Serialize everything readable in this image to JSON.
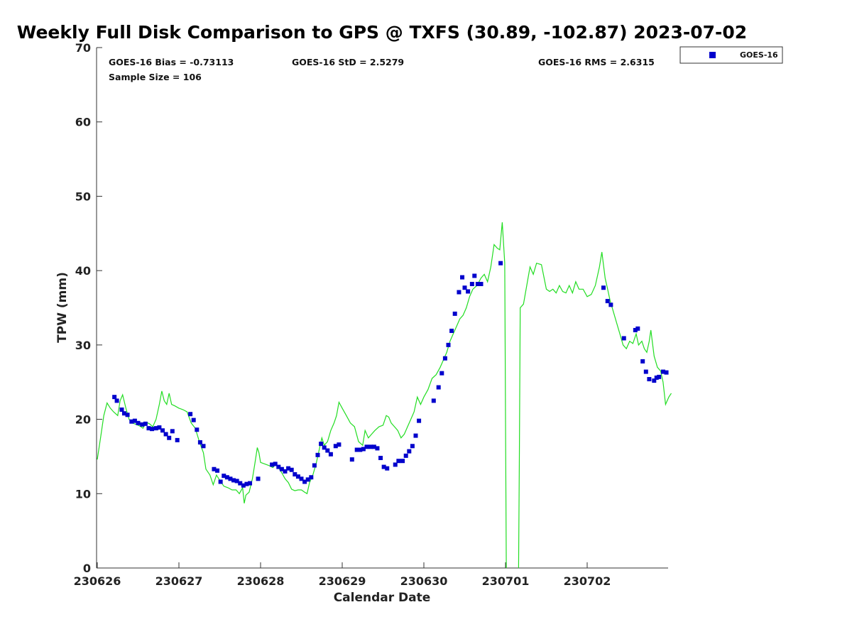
{
  "chart_data": {
    "type": "scatter",
    "title": "Weekly Full Disk Comparison to GPS @ TXFS (30.89, -102.87) 2023-07-02",
    "xlabel": "Calendar Date",
    "ylabel": "TPW (mm)",
    "xlim": [
      0,
      7
    ],
    "ylim": [
      0,
      70
    ],
    "x_ticks": [
      {
        "value": 0,
        "label": "230626"
      },
      {
        "value": 1,
        "label": "230627"
      },
      {
        "value": 2,
        "label": "230628"
      },
      {
        "value": 3,
        "label": "230629"
      },
      {
        "value": 4,
        "label": "230630"
      },
      {
        "value": 5,
        "label": "230701"
      },
      {
        "value": 6,
        "label": "230702"
      }
    ],
    "y_ticks": [
      {
        "value": 0,
        "label": "0"
      },
      {
        "value": 10,
        "label": "10"
      },
      {
        "value": 20,
        "label": "20"
      },
      {
        "value": 30,
        "label": "30"
      },
      {
        "value": 40,
        "label": "40"
      },
      {
        "value": 50,
        "label": "50"
      },
      {
        "value": 60,
        "label": "60"
      },
      {
        "value": 70,
        "label": "70"
      }
    ],
    "stats": {
      "bias": "GOES-16 Bias = -0.73113",
      "std": "GOES-16 StD = 2.5279",
      "rms": "GOES-16 RMS = 2.6315",
      "sample": "Sample Size = 106"
    },
    "legend": {
      "placement": "top-right-outside",
      "label": "GOES-16"
    },
    "colors": {
      "goes": "#0000cc",
      "gps": "#22dd22"
    },
    "gps_line": {
      "segments": [
        [
          [
            0.0,
            14.6
          ],
          [
            0.04,
            17.5
          ],
          [
            0.08,
            20.5
          ],
          [
            0.12,
            22.2
          ],
          [
            0.16,
            21.5
          ],
          [
            0.2,
            21.0
          ],
          [
            0.25,
            20.5
          ],
          [
            0.28,
            22.5
          ],
          [
            0.31,
            23.3
          ],
          [
            0.35,
            21.5
          ],
          [
            0.39,
            20.0
          ],
          [
            0.43,
            19.5
          ],
          [
            0.48,
            19.3
          ],
          [
            0.52,
            19.1
          ],
          [
            0.56,
            18.8
          ],
          [
            0.6,
            19.6
          ],
          [
            0.64,
            19.4
          ],
          [
            0.68,
            19.0
          ],
          [
            0.72,
            20.0
          ],
          [
            0.76,
            22.0
          ],
          [
            0.79,
            23.8
          ],
          [
            0.82,
            22.5
          ],
          [
            0.85,
            22.0
          ],
          [
            0.88,
            23.5
          ],
          [
            0.91,
            22.0
          ],
          [
            0.95,
            21.8
          ],
          [
            1.0,
            21.5
          ],
          [
            1.05,
            21.3
          ],
          [
            1.1,
            21.0
          ],
          [
            1.15,
            19.5
          ],
          [
            1.2,
            18.8
          ],
          [
            1.25,
            17.0
          ],
          [
            1.3,
            15.5
          ],
          [
            1.33,
            13.3
          ],
          [
            1.38,
            12.5
          ],
          [
            1.42,
            11.2
          ],
          [
            1.46,
            12.5
          ],
          [
            1.5,
            11.8
          ],
          [
            1.55,
            11.0
          ],
          [
            1.6,
            10.8
          ],
          [
            1.65,
            10.5
          ],
          [
            1.7,
            10.5
          ],
          [
            1.74,
            10.0
          ],
          [
            1.78,
            10.8
          ],
          [
            1.8,
            8.7
          ],
          [
            1.82,
            9.8
          ],
          [
            1.86,
            10.2
          ],
          [
            1.9,
            12.0
          ],
          [
            1.93,
            14.0
          ],
          [
            1.96,
            16.2
          ],
          [
            1.98,
            15.5
          ],
          [
            2.0,
            14.2
          ],
          [
            2.05,
            14.0
          ],
          [
            2.1,
            13.8
          ],
          [
            2.15,
            13.5
          ],
          [
            2.18,
            13.9
          ],
          [
            2.22,
            13.5
          ],
          [
            2.26,
            12.8
          ],
          [
            2.3,
            12.0
          ],
          [
            2.34,
            11.5
          ],
          [
            2.38,
            10.6
          ],
          [
            2.42,
            10.4
          ],
          [
            2.46,
            10.5
          ],
          [
            2.5,
            10.5
          ],
          [
            2.54,
            10.2
          ],
          [
            2.57,
            10.0
          ],
          [
            2.6,
            11.5
          ],
          [
            2.64,
            12.5
          ],
          [
            2.68,
            14.0
          ],
          [
            2.72,
            16.0
          ],
          [
            2.75,
            17.5
          ],
          [
            2.78,
            16.5
          ],
          [
            2.82,
            17.0
          ],
          [
            2.86,
            18.5
          ],
          [
            2.9,
            19.5
          ],
          [
            2.93,
            20.5
          ],
          [
            2.96,
            22.3
          ],
          [
            3.0,
            21.5
          ],
          [
            3.05,
            20.5
          ],
          [
            3.1,
            19.5
          ],
          [
            3.15,
            19.0
          ],
          [
            3.2,
            17.0
          ],
          [
            3.25,
            16.5
          ],
          [
            3.28,
            18.5
          ],
          [
            3.32,
            17.5
          ],
          [
            3.36,
            18.0
          ],
          [
            3.4,
            18.5
          ],
          [
            3.45,
            19.0
          ],
          [
            3.5,
            19.2
          ],
          [
            3.54,
            20.5
          ],
          [
            3.57,
            20.3
          ],
          [
            3.6,
            19.5
          ],
          [
            3.64,
            19.0
          ],
          [
            3.68,
            18.5
          ],
          [
            3.72,
            17.5
          ],
          [
            3.76,
            18.0
          ],
          [
            3.8,
            19.0
          ],
          [
            3.84,
            20.0
          ],
          [
            3.88,
            21.0
          ],
          [
            3.92,
            23.0
          ],
          [
            3.96,
            22.0
          ],
          [
            4.0,
            23.0
          ],
          [
            4.05,
            24.0
          ],
          [
            4.1,
            25.5
          ],
          [
            4.15,
            26.0
          ],
          [
            4.2,
            27.0
          ],
          [
            4.24,
            28.0
          ],
          [
            4.28,
            29.0
          ],
          [
            4.32,
            30.5
          ],
          [
            4.36,
            31.5
          ],
          [
            4.4,
            32.5
          ],
          [
            4.44,
            33.5
          ],
          [
            4.48,
            34.0
          ],
          [
            4.52,
            35.0
          ],
          [
            4.56,
            36.5
          ],
          [
            4.6,
            37.5
          ],
          [
            4.65,
            38.0
          ],
          [
            4.7,
            39.0
          ],
          [
            4.74,
            39.5
          ],
          [
            4.78,
            38.5
          ],
          [
            4.82,
            40.5
          ],
          [
            4.86,
            43.5
          ],
          [
            4.9,
            43.0
          ],
          [
            4.93,
            42.8
          ],
          [
            4.96,
            46.5
          ],
          [
            4.99,
            41.0
          ],
          [
            5.0,
            20.0
          ],
          [
            5.01,
            0.0
          ]
        ],
        [
          [
            5.16,
            0.0
          ],
          [
            5.17,
            15.0
          ],
          [
            5.18,
            35.0
          ],
          [
            5.22,
            35.5
          ],
          [
            5.26,
            38.0
          ],
          [
            5.3,
            40.5
          ],
          [
            5.34,
            39.5
          ],
          [
            5.38,
            41.0
          ],
          [
            5.44,
            40.8
          ],
          [
            5.5,
            37.5
          ],
          [
            5.54,
            37.2
          ],
          [
            5.58,
            37.5
          ],
          [
            5.62,
            37.0
          ],
          [
            5.66,
            38.0
          ],
          [
            5.7,
            37.2
          ],
          [
            5.74,
            37.0
          ],
          [
            5.78,
            38.0
          ],
          [
            5.82,
            37.0
          ],
          [
            5.86,
            38.5
          ],
          [
            5.9,
            37.5
          ],
          [
            5.95,
            37.5
          ],
          [
            6.0,
            36.5
          ],
          [
            6.05,
            36.8
          ],
          [
            6.1,
            38.0
          ],
          [
            6.15,
            40.5
          ],
          [
            6.18,
            42.5
          ],
          [
            6.22,
            39.0
          ],
          [
            6.25,
            37.5
          ],
          [
            6.28,
            36.0
          ],
          [
            6.32,
            34.5
          ],
          [
            6.36,
            33.0
          ],
          [
            6.4,
            31.5
          ],
          [
            6.44,
            30.0
          ],
          [
            6.48,
            29.5
          ],
          [
            6.52,
            30.5
          ],
          [
            6.56,
            30.2
          ],
          [
            6.6,
            31.5
          ],
          [
            6.63,
            30.0
          ],
          [
            6.67,
            30.5
          ],
          [
            6.7,
            29.5
          ],
          [
            6.73,
            29.0
          ],
          [
            6.76,
            30.5
          ],
          [
            6.78,
            32.0
          ],
          [
            6.82,
            28.5
          ],
          [
            6.86,
            27.0
          ],
          [
            6.9,
            26.5
          ],
          [
            6.93,
            25.0
          ],
          [
            6.96,
            22.0
          ],
          [
            7.0,
            23.0
          ],
          [
            7.03,
            23.5
          ]
        ]
      ]
    },
    "series": [
      {
        "name": "GOES-16",
        "points": [
          [
            0.21,
            23.0
          ],
          [
            0.24,
            22.5
          ],
          [
            0.3,
            21.3
          ],
          [
            0.33,
            20.8
          ],
          [
            0.37,
            20.6
          ],
          [
            0.42,
            19.7
          ],
          [
            0.46,
            19.8
          ],
          [
            0.5,
            19.5
          ],
          [
            0.55,
            19.3
          ],
          [
            0.59,
            19.4
          ],
          [
            0.63,
            18.8
          ],
          [
            0.67,
            18.7
          ],
          [
            0.72,
            18.8
          ],
          [
            0.76,
            18.9
          ],
          [
            0.8,
            18.5
          ],
          [
            0.84,
            18.0
          ],
          [
            0.88,
            17.5
          ],
          [
            0.92,
            18.4
          ],
          [
            0.98,
            17.2
          ],
          [
            1.14,
            20.7
          ],
          [
            1.18,
            19.9
          ],
          [
            1.22,
            18.6
          ],
          [
            1.26,
            16.9
          ],
          [
            1.3,
            16.4
          ],
          [
            1.43,
            13.3
          ],
          [
            1.47,
            13.1
          ],
          [
            1.51,
            11.6
          ],
          [
            1.55,
            12.4
          ],
          [
            1.59,
            12.2
          ],
          [
            1.63,
            12.0
          ],
          [
            1.67,
            11.8
          ],
          [
            1.71,
            11.7
          ],
          [
            1.75,
            11.4
          ],
          [
            1.79,
            11.1
          ],
          [
            1.83,
            11.3
          ],
          [
            1.87,
            11.4
          ],
          [
            1.97,
            12.0
          ],
          [
            2.14,
            13.9
          ],
          [
            2.18,
            14.0
          ],
          [
            2.22,
            13.6
          ],
          [
            2.26,
            13.3
          ],
          [
            2.3,
            13.0
          ],
          [
            2.34,
            13.4
          ],
          [
            2.38,
            13.2
          ],
          [
            2.42,
            12.6
          ],
          [
            2.46,
            12.3
          ],
          [
            2.5,
            12.0
          ],
          [
            2.54,
            11.6
          ],
          [
            2.58,
            11.9
          ],
          [
            2.62,
            12.2
          ],
          [
            2.66,
            13.8
          ],
          [
            2.7,
            15.2
          ],
          [
            2.74,
            16.7
          ],
          [
            2.78,
            16.2
          ],
          [
            2.82,
            15.8
          ],
          [
            2.86,
            15.3
          ],
          [
            2.92,
            16.4
          ],
          [
            2.96,
            16.6
          ],
          [
            3.12,
            14.6
          ],
          [
            3.18,
            15.9
          ],
          [
            3.22,
            15.9
          ],
          [
            3.26,
            16.0
          ],
          [
            3.3,
            16.3
          ],
          [
            3.35,
            16.3
          ],
          [
            3.39,
            16.3
          ],
          [
            3.43,
            16.1
          ],
          [
            3.47,
            14.8
          ],
          [
            3.51,
            13.6
          ],
          [
            3.55,
            13.4
          ],
          [
            3.65,
            13.9
          ],
          [
            3.69,
            14.4
          ],
          [
            3.74,
            14.4
          ],
          [
            3.78,
            15.1
          ],
          [
            3.82,
            15.7
          ],
          [
            3.86,
            16.4
          ],
          [
            3.9,
            17.8
          ],
          [
            3.94,
            19.8
          ],
          [
            4.12,
            22.5
          ],
          [
            4.18,
            24.3
          ],
          [
            4.22,
            26.2
          ],
          [
            4.26,
            28.2
          ],
          [
            4.3,
            30.0
          ],
          [
            4.34,
            31.9
          ],
          [
            4.38,
            34.2
          ],
          [
            4.43,
            37.1
          ],
          [
            4.47,
            39.1
          ],
          [
            4.5,
            37.7
          ],
          [
            4.54,
            37.2
          ],
          [
            4.59,
            38.2
          ],
          [
            4.62,
            39.3
          ],
          [
            4.66,
            38.2
          ],
          [
            4.7,
            38.2
          ],
          [
            4.94,
            41.0
          ],
          [
            6.2,
            37.7
          ],
          [
            6.25,
            35.9
          ],
          [
            6.29,
            35.4
          ],
          [
            6.45,
            30.9
          ],
          [
            6.59,
            32.0
          ],
          [
            6.62,
            32.2
          ],
          [
            6.68,
            27.8
          ],
          [
            6.72,
            26.4
          ],
          [
            6.76,
            25.4
          ],
          [
            6.82,
            25.2
          ],
          [
            6.85,
            25.6
          ],
          [
            6.88,
            25.7
          ],
          [
            6.93,
            26.4
          ],
          [
            6.97,
            26.3
          ]
        ]
      }
    ]
  }
}
